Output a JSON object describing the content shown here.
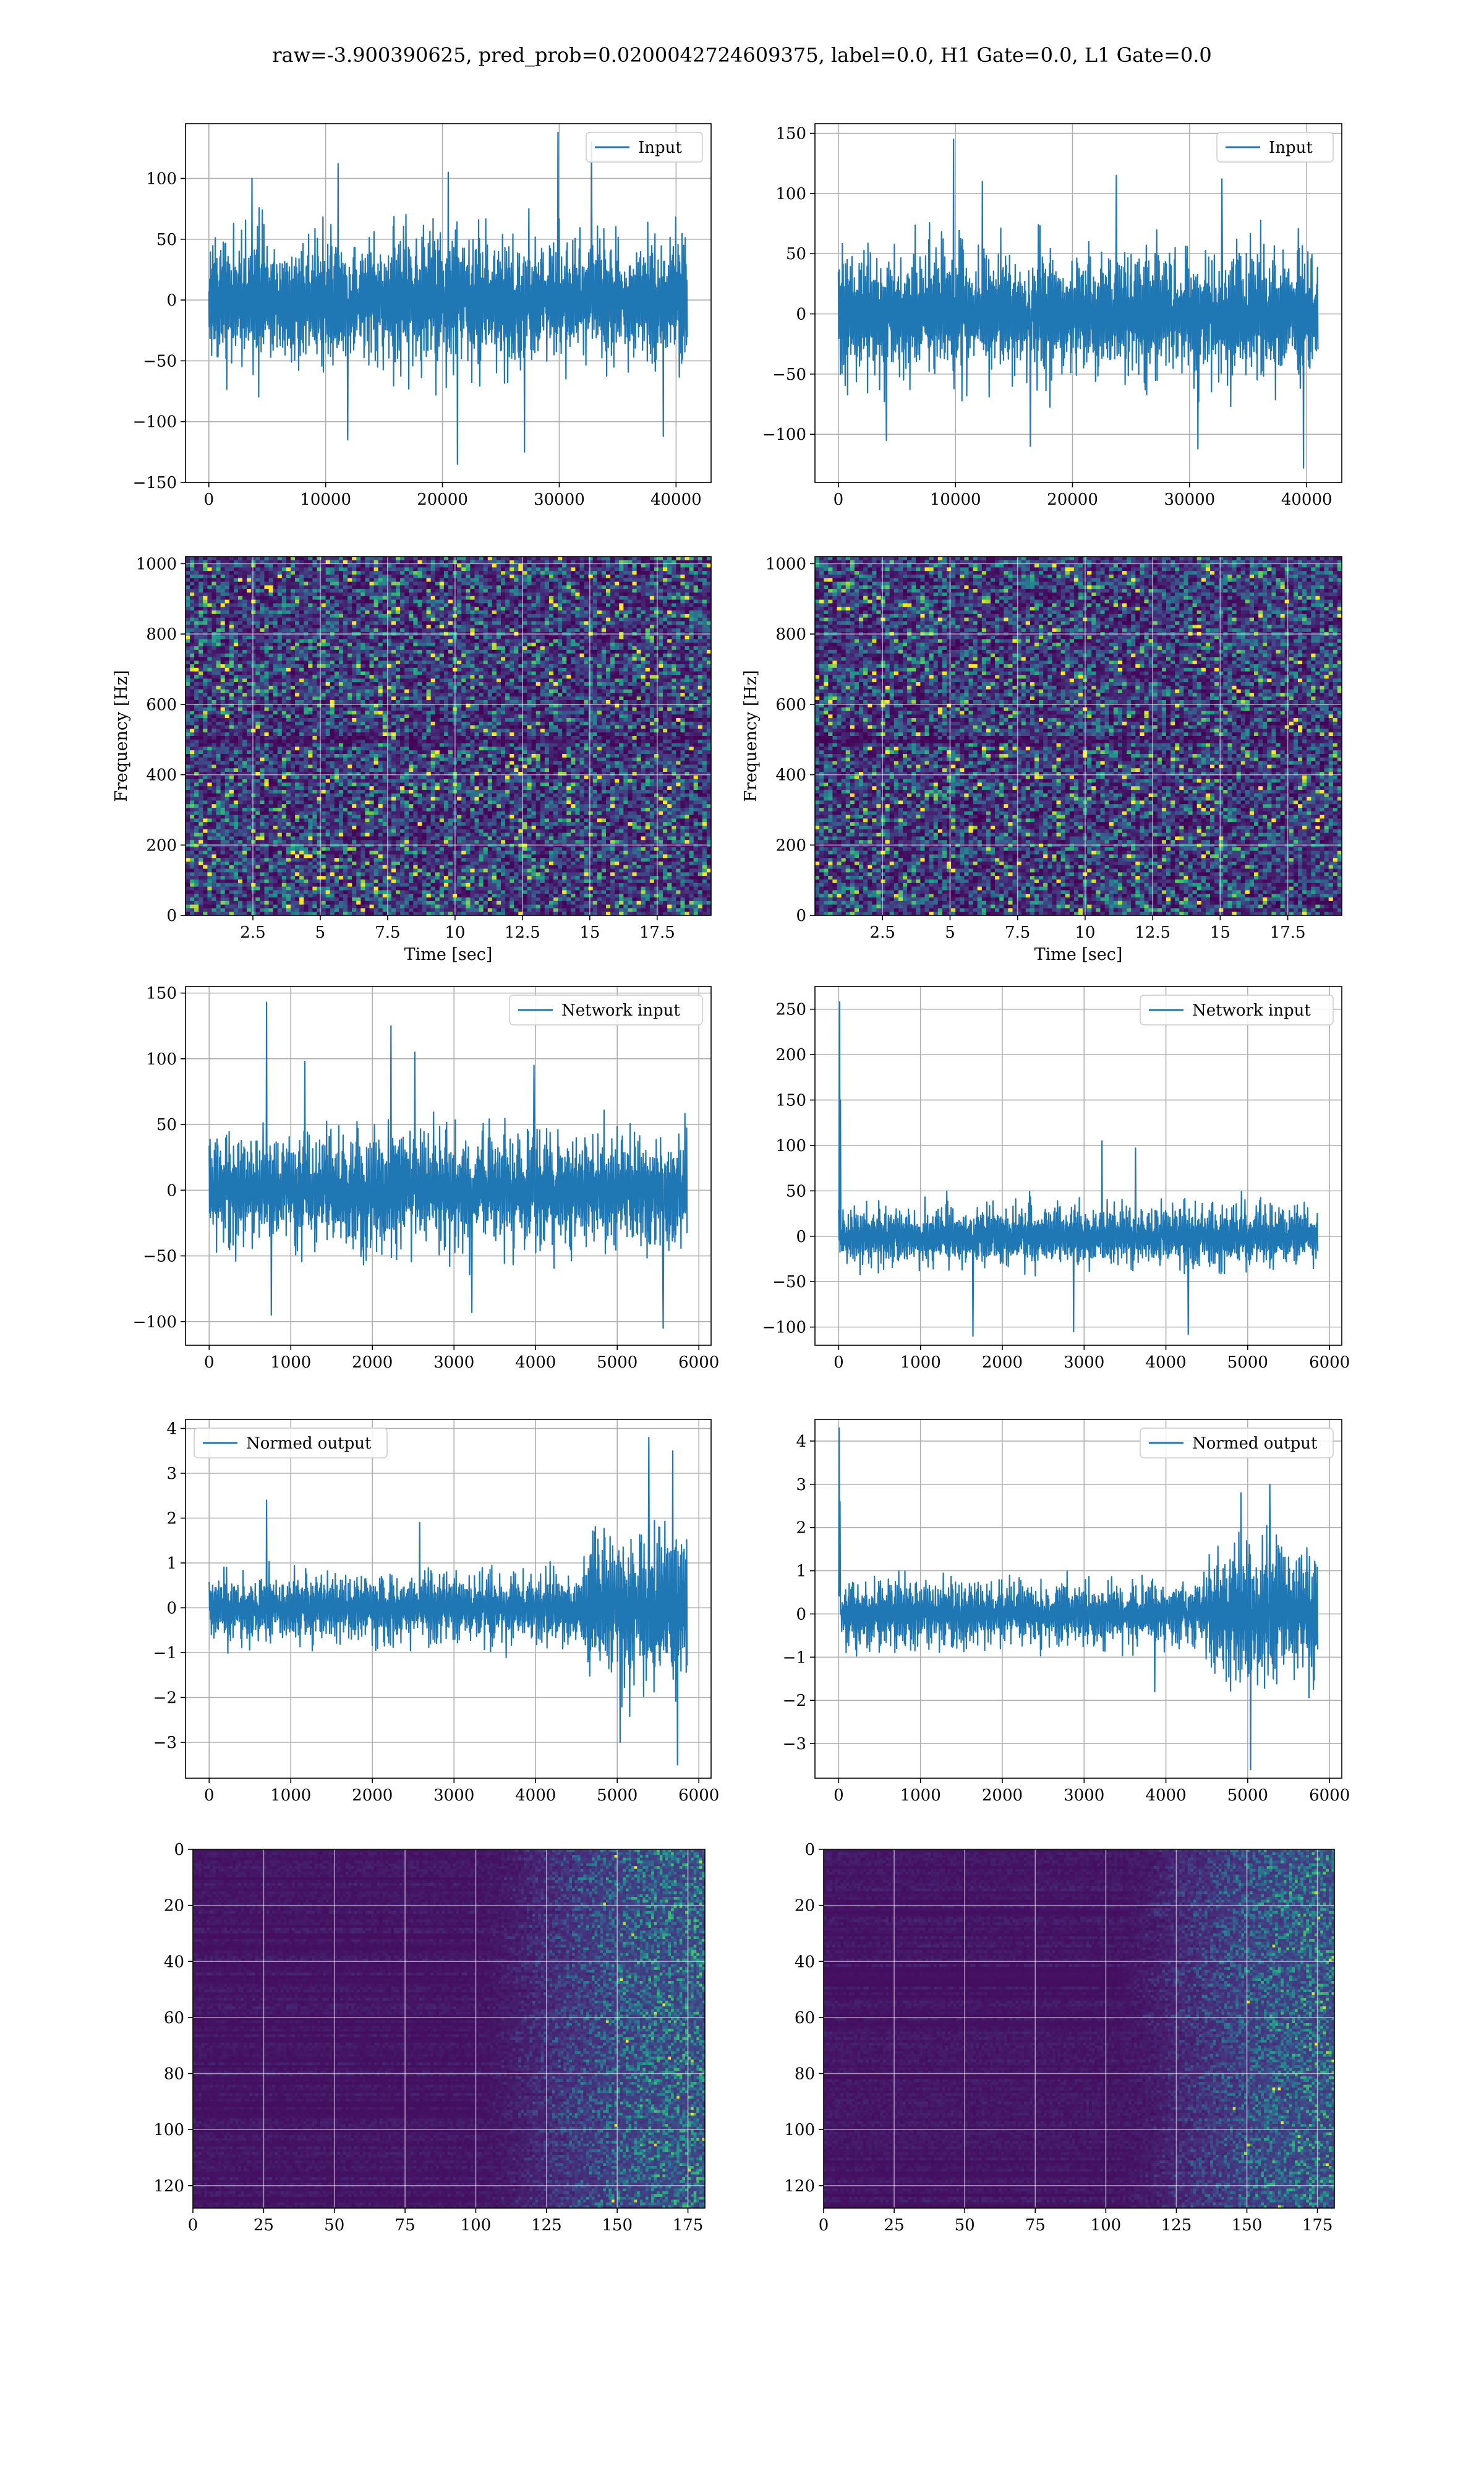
{
  "figure": {
    "suptitle": "raw=-3.900390625, pred_prob=0.0200042724609375, label=0.0, H1 Gate=0.0, L1 Gate=0.0"
  },
  "colors": {
    "line": "#1f77b4",
    "grid": "#b0b0b0",
    "axes": "#000000",
    "cmap": [
      "#440154",
      "#46327e",
      "#365c8d",
      "#277f8e",
      "#1fa187",
      "#4ac16d",
      "#a0da39",
      "#fde725"
    ]
  },
  "chart_data": [
    {
      "id": "r1c1",
      "type": "line",
      "legend": "Input",
      "legend_loc": "upper right",
      "xlim": [
        -2000,
        43000
      ],
      "ylim": [
        -150,
        145
      ],
      "xticks": [
        0,
        10000,
        20000,
        30000,
        40000
      ],
      "yticks": [
        -150,
        -100,
        -50,
        0,
        50,
        100
      ],
      "xlabel": "",
      "ylabel": "",
      "grid": true,
      "signal": {
        "x_range": [
          0,
          40960
        ],
        "n_points": 1200,
        "envelope": [
          [
            0,
            55
          ],
          [
            1,
            55
          ]
        ],
        "std": 27,
        "spikes": [
          [
            0.09,
            100
          ],
          [
            0.27,
            112
          ],
          [
            0.52,
            -135
          ],
          [
            0.5,
            105
          ],
          [
            0.73,
            138
          ],
          [
            0.8,
            130
          ],
          [
            0.29,
            -115
          ],
          [
            0.66,
            -125
          ],
          [
            0.95,
            -112
          ]
        ],
        "seed": 11
      }
    },
    {
      "id": "r1c2",
      "type": "line",
      "legend": "Input",
      "legend_loc": "upper right",
      "xlim": [
        -2000,
        43000
      ],
      "ylim": [
        -140,
        158
      ],
      "xticks": [
        0,
        10000,
        20000,
        30000,
        40000
      ],
      "yticks": [
        -100,
        -50,
        0,
        50,
        100,
        150
      ],
      "xlabel": "",
      "ylabel": "",
      "grid": true,
      "signal": {
        "x_range": [
          0,
          40960
        ],
        "n_points": 1200,
        "envelope": [
          [
            0,
            55
          ],
          [
            1,
            55
          ]
        ],
        "std": 27,
        "spikes": [
          [
            0.24,
            145
          ],
          [
            0.3,
            110
          ],
          [
            0.58,
            115
          ],
          [
            0.75,
            -112
          ],
          [
            0.97,
            -128
          ],
          [
            0.4,
            -110
          ],
          [
            0.8,
            112
          ],
          [
            0.1,
            -105
          ]
        ],
        "seed": 23
      }
    },
    {
      "id": "r2c1",
      "type": "heatmap",
      "grid": true,
      "xlim": [
        0,
        19.5
      ],
      "ylim": [
        0,
        1020
      ],
      "xticks": [
        2.5,
        5,
        7.5,
        10,
        12.5,
        15,
        17.5
      ],
      "yticks": [
        0,
        200,
        400,
        600,
        800,
        1000
      ],
      "xlabel": "Time [sec]",
      "ylabel": "Frequency [Hz]",
      "heat": {
        "cols": 120,
        "rows": 100,
        "mode": "noise",
        "band_freq": 500,
        "seed": 5
      }
    },
    {
      "id": "r2c2",
      "type": "heatmap",
      "grid": true,
      "xlim": [
        0,
        19.5
      ],
      "ylim": [
        0,
        1020
      ],
      "xticks": [
        2.5,
        5,
        7.5,
        10,
        12.5,
        15,
        17.5
      ],
      "yticks": [
        0,
        200,
        400,
        600,
        800,
        1000
      ],
      "xlabel": "Time [sec]",
      "ylabel": "Frequency [Hz]",
      "heat": {
        "cols": 120,
        "rows": 100,
        "mode": "noise",
        "band_freq": 500,
        "seed": 9
      }
    },
    {
      "id": "r3c1",
      "type": "line",
      "legend": "Network input",
      "legend_loc": "upper right",
      "xlim": [
        -290,
        6150
      ],
      "ylim": [
        -118,
        155
      ],
      "xticks": [
        0,
        1000,
        2000,
        3000,
        4000,
        5000,
        6000
      ],
      "yticks": [
        -100,
        -50,
        0,
        50,
        100,
        150
      ],
      "xlabel": "",
      "ylabel": "",
      "grid": true,
      "signal": {
        "x_range": [
          0,
          5856
        ],
        "n_points": 1100,
        "envelope": [
          [
            0,
            45
          ],
          [
            1,
            45
          ]
        ],
        "std": 24,
        "spikes": [
          [
            0.12,
            143
          ],
          [
            0.38,
            125
          ],
          [
            0.43,
            105
          ],
          [
            0.13,
            -95
          ],
          [
            0.95,
            -105
          ],
          [
            0.2,
            98
          ],
          [
            0.68,
            95
          ],
          [
            0.55,
            -93
          ]
        ],
        "seed": 31
      }
    },
    {
      "id": "r3c2",
      "type": "line",
      "legend": "Network input",
      "legend_loc": "upper right",
      "xlim": [
        -290,
        6150
      ],
      "ylim": [
        -120,
        275
      ],
      "xticks": [
        0,
        1000,
        2000,
        3000,
        4000,
        5000,
        6000
      ],
      "yticks": [
        -100,
        -50,
        0,
        50,
        100,
        150,
        200,
        250
      ],
      "xlabel": "",
      "ylabel": "",
      "grid": true,
      "signal": {
        "x_range": [
          0,
          5856
        ],
        "n_points": 1100,
        "envelope": [
          [
            0,
            35
          ],
          [
            1,
            35
          ]
        ],
        "std": 17,
        "spikes": [
          [
            0.002,
            258
          ],
          [
            0.004,
            150
          ],
          [
            0.55,
            105
          ],
          [
            0.28,
            -110
          ],
          [
            0.73,
            -108
          ],
          [
            0.49,
            -105
          ],
          [
            0.62,
            97
          ]
        ],
        "seed": 41
      }
    },
    {
      "id": "r4c1",
      "type": "line",
      "legend": "Normed output",
      "legend_loc": "upper left",
      "xlim": [
        -290,
        6150
      ],
      "ylim": [
        -3.8,
        4.2
      ],
      "xticks": [
        0,
        1000,
        2000,
        3000,
        4000,
        5000,
        6000
      ],
      "yticks": [
        -3,
        -2,
        -1,
        0,
        1,
        2,
        3,
        4
      ],
      "xlabel": "",
      "ylabel": "",
      "grid": true,
      "signal": {
        "x_range": [
          0,
          5856
        ],
        "n_points": 1100,
        "envelope": [
          [
            0,
            0.75
          ],
          [
            0.78,
            0.75
          ],
          [
            0.81,
            1.6
          ],
          [
            1,
            1.7
          ]
        ],
        "std": 0.45,
        "spikes": [
          [
            0.12,
            2.4
          ],
          [
            0.92,
            3.8
          ],
          [
            0.97,
            3.5
          ],
          [
            0.98,
            -3.5
          ],
          [
            0.86,
            -3.0
          ],
          [
            0.44,
            1.9
          ]
        ],
        "seed": 53
      }
    },
    {
      "id": "r4c2",
      "type": "line",
      "legend": "Normed output",
      "legend_loc": "upper right",
      "xlim": [
        -290,
        6150
      ],
      "ylim": [
        -3.8,
        4.5
      ],
      "xticks": [
        0,
        1000,
        2000,
        3000,
        4000,
        5000,
        6000
      ],
      "yticks": [
        -3,
        -2,
        -1,
        0,
        1,
        2,
        3,
        4
      ],
      "xlabel": "",
      "ylabel": "",
      "grid": true,
      "signal": {
        "x_range": [
          0,
          5856
        ],
        "n_points": 1100,
        "envelope": [
          [
            0,
            0.7
          ],
          [
            0.75,
            0.7
          ],
          [
            0.8,
            1.5
          ],
          [
            1,
            1.6
          ]
        ],
        "std": 0.42,
        "spikes": [
          [
            0.001,
            4.3
          ],
          [
            0.003,
            2.6
          ],
          [
            0.86,
            -3.6
          ],
          [
            0.9,
            3.0
          ],
          [
            0.84,
            2.8
          ],
          [
            0.66,
            -1.8
          ]
        ],
        "seed": 67
      }
    },
    {
      "id": "r5c1",
      "type": "heatmap",
      "grid": true,
      "xlim": [
        0,
        181
      ],
      "ylim": [
        128,
        0
      ],
      "xticks": [
        0,
        25,
        50,
        75,
        100,
        125,
        150,
        175
      ],
      "yticks": [
        0,
        20,
        40,
        60,
        80,
        100,
        120
      ],
      "xlabel": "",
      "ylabel": "",
      "heat": {
        "cols": 181,
        "rows": 128,
        "mode": "features",
        "onset": 0.6,
        "seed": 71
      }
    },
    {
      "id": "r5c2",
      "type": "heatmap",
      "grid": true,
      "xlim": [
        0,
        181
      ],
      "ylim": [
        128,
        0
      ],
      "xticks": [
        0,
        25,
        50,
        75,
        100,
        125,
        150,
        175
      ],
      "yticks": [
        0,
        20,
        40,
        60,
        80,
        100,
        120
      ],
      "xlabel": "",
      "ylabel": "",
      "heat": {
        "cols": 181,
        "rows": 128,
        "mode": "features",
        "onset": 0.62,
        "seed": 83
      }
    }
  ]
}
